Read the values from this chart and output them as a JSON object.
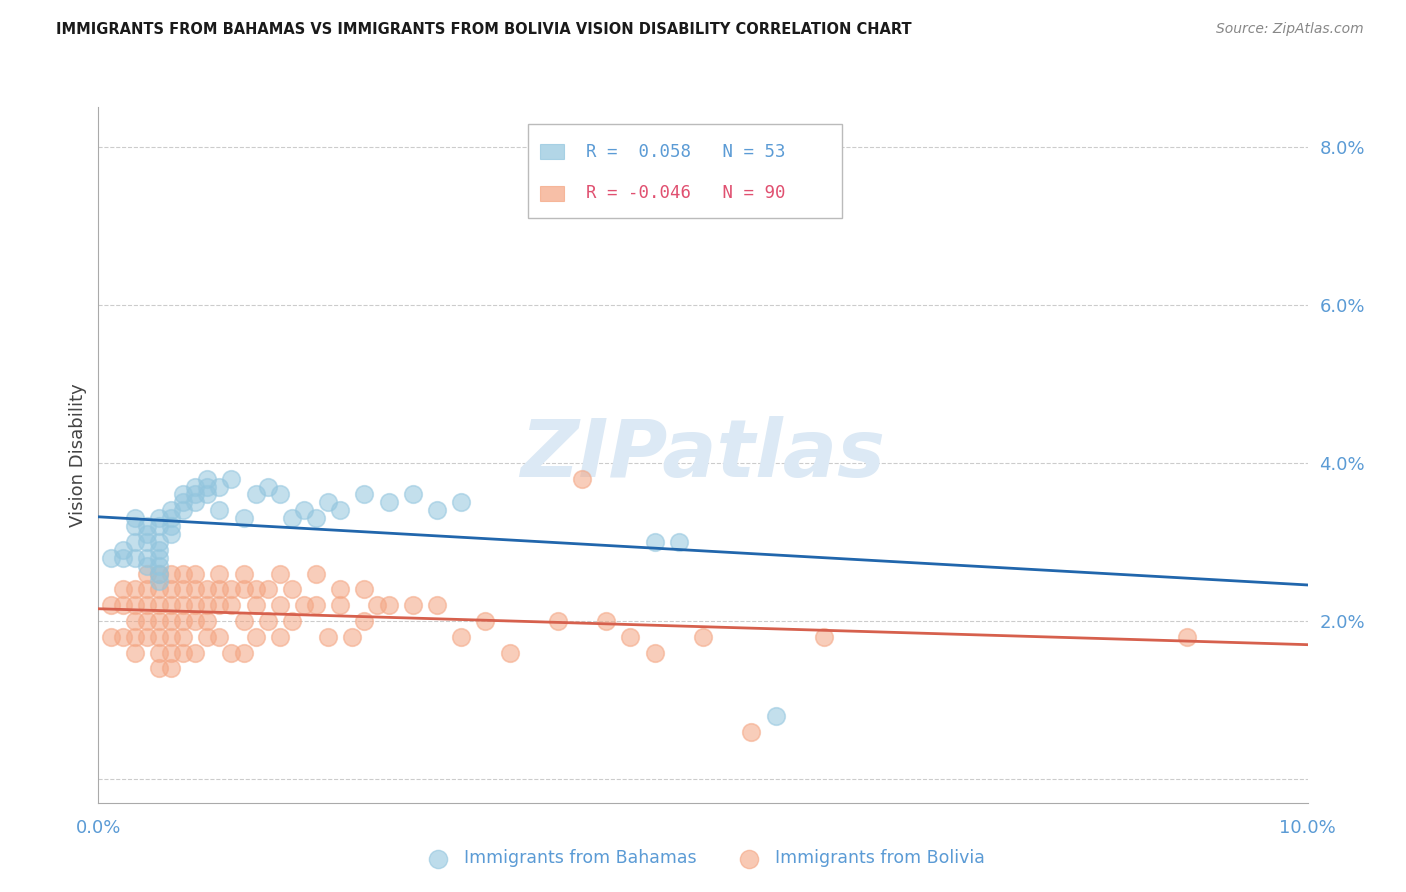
{
  "title": "IMMIGRANTS FROM BAHAMAS VS IMMIGRANTS FROM BOLIVIA VISION DISABILITY CORRELATION CHART",
  "source": "Source: ZipAtlas.com",
  "ylabel": "Vision Disability",
  "xmin": 0.0,
  "xmax": 0.1,
  "ymin": -0.003,
  "ymax": 0.085,
  "yticks": [
    0.0,
    0.02,
    0.04,
    0.06,
    0.08
  ],
  "ytick_labels": [
    "",
    "2.0%",
    "4.0%",
    "6.0%",
    "8.0%"
  ],
  "color_blue": "#92c5de",
  "color_pink": "#f4a582",
  "line_blue": "#2166ac",
  "line_pink": "#d6604d",
  "axis_color": "#5b9bd5",
  "watermark_color": "#dce9f5",
  "bahamas_x": [
    0.001,
    0.002,
    0.002,
    0.003,
    0.003,
    0.003,
    0.003,
    0.004,
    0.004,
    0.004,
    0.004,
    0.004,
    0.005,
    0.005,
    0.005,
    0.005,
    0.005,
    0.005,
    0.005,
    0.005,
    0.006,
    0.006,
    0.006,
    0.006,
    0.007,
    0.007,
    0.007,
    0.008,
    0.008,
    0.008,
    0.009,
    0.009,
    0.009,
    0.01,
    0.01,
    0.011,
    0.012,
    0.013,
    0.014,
    0.015,
    0.016,
    0.017,
    0.018,
    0.019,
    0.02,
    0.022,
    0.024,
    0.026,
    0.028,
    0.03,
    0.046,
    0.048,
    0.056
  ],
  "bahamas_y": [
    0.028,
    0.029,
    0.028,
    0.033,
    0.032,
    0.03,
    0.028,
    0.032,
    0.031,
    0.03,
    0.028,
    0.027,
    0.033,
    0.032,
    0.03,
    0.029,
    0.028,
    0.027,
    0.026,
    0.025,
    0.034,
    0.033,
    0.032,
    0.031,
    0.036,
    0.035,
    0.034,
    0.037,
    0.036,
    0.035,
    0.038,
    0.037,
    0.036,
    0.037,
    0.034,
    0.038,
    0.033,
    0.036,
    0.037,
    0.036,
    0.033,
    0.034,
    0.033,
    0.035,
    0.034,
    0.036,
    0.035,
    0.036,
    0.034,
    0.035,
    0.03,
    0.03,
    0.008
  ],
  "bolivia_x": [
    0.001,
    0.001,
    0.002,
    0.002,
    0.002,
    0.003,
    0.003,
    0.003,
    0.003,
    0.003,
    0.004,
    0.004,
    0.004,
    0.004,
    0.004,
    0.005,
    0.005,
    0.005,
    0.005,
    0.005,
    0.005,
    0.005,
    0.006,
    0.006,
    0.006,
    0.006,
    0.006,
    0.006,
    0.006,
    0.007,
    0.007,
    0.007,
    0.007,
    0.007,
    0.007,
    0.008,
    0.008,
    0.008,
    0.008,
    0.008,
    0.009,
    0.009,
    0.009,
    0.009,
    0.01,
    0.01,
    0.01,
    0.01,
    0.011,
    0.011,
    0.011,
    0.012,
    0.012,
    0.012,
    0.012,
    0.013,
    0.013,
    0.013,
    0.014,
    0.014,
    0.015,
    0.015,
    0.015,
    0.016,
    0.016,
    0.017,
    0.018,
    0.018,
    0.019,
    0.02,
    0.02,
    0.021,
    0.022,
    0.022,
    0.023,
    0.024,
    0.026,
    0.028,
    0.03,
    0.032,
    0.034,
    0.038,
    0.04,
    0.042,
    0.044,
    0.046,
    0.05,
    0.054,
    0.06,
    0.09
  ],
  "bolivia_y": [
    0.022,
    0.018,
    0.024,
    0.022,
    0.018,
    0.024,
    0.022,
    0.02,
    0.018,
    0.016,
    0.026,
    0.024,
    0.022,
    0.02,
    0.018,
    0.026,
    0.024,
    0.022,
    0.02,
    0.018,
    0.016,
    0.014,
    0.026,
    0.024,
    0.022,
    0.02,
    0.018,
    0.016,
    0.014,
    0.026,
    0.024,
    0.022,
    0.02,
    0.018,
    0.016,
    0.026,
    0.024,
    0.022,
    0.02,
    0.016,
    0.024,
    0.022,
    0.02,
    0.018,
    0.026,
    0.024,
    0.022,
    0.018,
    0.024,
    0.022,
    0.016,
    0.026,
    0.024,
    0.02,
    0.016,
    0.024,
    0.022,
    0.018,
    0.024,
    0.02,
    0.026,
    0.022,
    0.018,
    0.024,
    0.02,
    0.022,
    0.026,
    0.022,
    0.018,
    0.024,
    0.022,
    0.018,
    0.024,
    0.02,
    0.022,
    0.022,
    0.022,
    0.022,
    0.018,
    0.02,
    0.016,
    0.02,
    0.038,
    0.02,
    0.018,
    0.016,
    0.018,
    0.006,
    0.018,
    0.018
  ]
}
